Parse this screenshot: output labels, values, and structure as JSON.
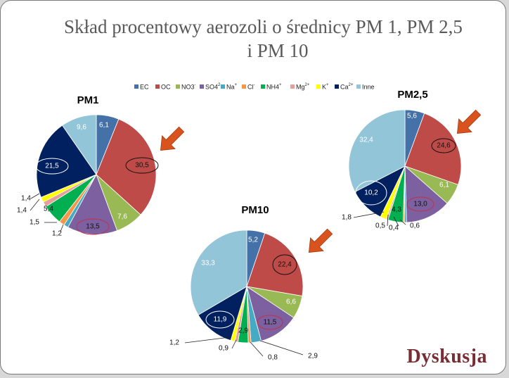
{
  "title_line1": "Skład procentowy aerozoli o średnicy PM 1, PM 2,5",
  "title_line2": "i PM 10",
  "footer": "Dyskusja",
  "chart_data": {
    "type": "pie",
    "legend": {
      "placement": "top",
      "entries": [
        {
          "key": "EC",
          "label": "EC",
          "color": "#4472a8"
        },
        {
          "key": "OC",
          "label": "OC",
          "color": "#be4b48"
        },
        {
          "key": "NO3",
          "label": "NO3",
          "sup": "-",
          "color": "#98b954"
        },
        {
          "key": "SO4",
          "label": "SO4",
          "sup": "2-",
          "color": "#7d60a0"
        },
        {
          "key": "Na",
          "label": "Na",
          "sup": "+",
          "color": "#46aac5"
        },
        {
          "key": "Cl",
          "label": "Cl",
          "sup": "-",
          "color": "#f79646"
        },
        {
          "key": "NH4",
          "label": "NH4",
          "sup": "+",
          "color": "#00b050"
        },
        {
          "key": "Mg",
          "label": "Mg",
          "sup": "2+",
          "color": "#e6a09b"
        },
        {
          "key": "K",
          "label": "K",
          "sup": "+",
          "color": "#ffff00"
        },
        {
          "key": "Ca",
          "label": "Ca",
          "sup": "2+",
          "color": "#002060"
        },
        {
          "key": "Inne",
          "label": "Inne",
          "color": "#93c5d9"
        }
      ]
    },
    "charts": [
      {
        "title": "PM1",
        "slices": [
          {
            "key": "EC",
            "value": 6.1,
            "label": "6,1"
          },
          {
            "key": "OC",
            "value": 30.5,
            "label": "30,5",
            "circled": true
          },
          {
            "key": "NO3",
            "value": 7.6,
            "label": "7,6"
          },
          {
            "key": "SO4",
            "value": 13.5,
            "label": "13,5",
            "circled": true
          },
          {
            "key": "Na",
            "value": 1.2,
            "label": "1,2"
          },
          {
            "key": "Cl",
            "value": 1.5,
            "label": "1,5"
          },
          {
            "key": "NH4",
            "value": 5.4,
            "label": "5,4"
          },
          {
            "key": "Mg",
            "value": 1.4,
            "label": "1,4"
          },
          {
            "key": "K",
            "value": 1.4,
            "label": "1,4"
          },
          {
            "key": "Ca",
            "value": 21.5,
            "label": "21,5",
            "circled": true
          },
          {
            "key": "Inne",
            "value": 9.6,
            "label": "9,6"
          }
        ]
      },
      {
        "title": "PM2,5",
        "slices": [
          {
            "key": "EC",
            "value": 5.6,
            "label": "5,6"
          },
          {
            "key": "OC",
            "value": 24.6,
            "label": "24,6",
            "circled": true
          },
          {
            "key": "NO3",
            "value": 6.1,
            "label": "6,1"
          },
          {
            "key": "SO4",
            "value": 13.0,
            "label": "13,0",
            "circled": true
          },
          {
            "key": "Na",
            "value": 0.6,
            "label": "0,6"
          },
          {
            "key": "Cl",
            "value": 0.4,
            "label": "0,4"
          },
          {
            "key": "NH4",
            "value": 4.3,
            "label": "4,3"
          },
          {
            "key": "Mg",
            "value": 0.5,
            "label": "0,5"
          },
          {
            "key": "K",
            "value": 1.8,
            "label": "1,8"
          },
          {
            "key": "Ca",
            "value": 10.2,
            "label": "10,2",
            "circled": true
          },
          {
            "key": "Inne",
            "value": 32.4,
            "label": "32,4"
          }
        ]
      },
      {
        "title": "PM10",
        "slices": [
          {
            "key": "EC",
            "value": 5.2,
            "label": "5,2"
          },
          {
            "key": "OC",
            "value": 22.4,
            "label": "22,4",
            "circled": true
          },
          {
            "key": "NO3",
            "value": 6.6,
            "label": "6,6"
          },
          {
            "key": "SO4",
            "value": 11.5,
            "label": "11,5",
            "circled": true
          },
          {
            "key": "Na",
            "value": 2.9,
            "label": "2,9"
          },
          {
            "key": "Cl",
            "value": 0.8,
            "label": "0,8"
          },
          {
            "key": "NH4",
            "value": 2.9,
            "label": "2,9"
          },
          {
            "key": "Mg",
            "value": 0.9,
            "label": "0,9"
          },
          {
            "key": "K",
            "value": 1.2,
            "label": "1,2"
          },
          {
            "key": "Ca",
            "value": 11.9,
            "label": "11,9",
            "circled": true
          },
          {
            "key": "Inne",
            "value": 33.3,
            "label": "33,3"
          }
        ]
      }
    ]
  }
}
